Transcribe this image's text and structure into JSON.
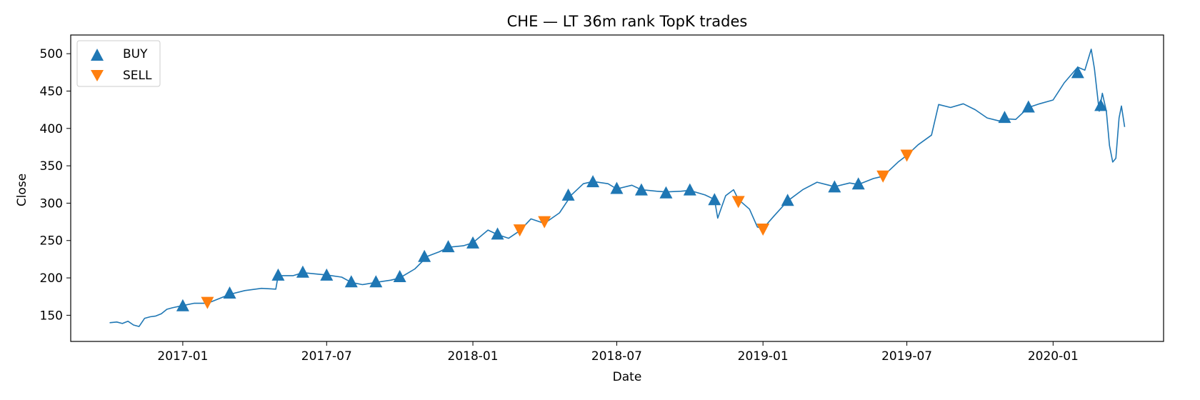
{
  "chart_data": {
    "type": "line",
    "title": "CHE — LT 36m rank TopK trades",
    "xlabel": "Date",
    "ylabel": "Close",
    "x_range": [
      "2016-08-13",
      "2020-05-19"
    ],
    "ylim": [
      115,
      525
    ],
    "x_ticks": [
      "2017-01",
      "2017-07",
      "2018-01",
      "2018-07",
      "2019-01",
      "2019-07",
      "2020-01"
    ],
    "y_ticks": [
      150,
      200,
      250,
      300,
      350,
      400,
      450,
      500
    ],
    "grid": false,
    "legend_position": "top-left",
    "colors": {
      "line": "#1f77b4",
      "buy": "#1f77b4",
      "sell": "#ff7f0e"
    },
    "series": [
      {
        "type": "line",
        "points": [
          [
            "2016-10-01",
            140
          ],
          [
            "2016-10-10",
            141
          ],
          [
            "2016-10-17",
            139
          ],
          [
            "2016-10-24",
            142
          ],
          [
            "2016-10-31",
            137
          ],
          [
            "2016-11-07",
            135
          ],
          [
            "2016-11-14",
            146
          ],
          [
            "2016-11-21",
            148
          ],
          [
            "2016-11-28",
            149
          ],
          [
            "2016-12-05",
            152
          ],
          [
            "2016-12-12",
            158
          ],
          [
            "2016-12-19",
            160
          ],
          [
            "2017-01-01",
            163
          ],
          [
            "2017-01-15",
            166
          ],
          [
            "2017-02-01",
            166
          ],
          [
            "2017-02-15",
            172
          ],
          [
            "2017-03-01",
            178
          ],
          [
            "2017-03-20",
            183
          ],
          [
            "2017-04-10",
            186
          ],
          [
            "2017-04-28",
            185
          ],
          [
            "2017-05-01",
            203
          ],
          [
            "2017-05-20",
            203
          ],
          [
            "2017-06-01",
            207
          ],
          [
            "2017-06-20",
            205
          ],
          [
            "2017-07-01",
            204
          ],
          [
            "2017-07-20",
            201
          ],
          [
            "2017-08-01",
            194
          ],
          [
            "2017-08-15",
            191
          ],
          [
            "2017-09-01",
            194
          ],
          [
            "2017-09-20",
            197
          ],
          [
            "2017-10-01",
            200
          ],
          [
            "2017-10-20",
            212
          ],
          [
            "2017-11-05",
            229
          ],
          [
            "2017-11-20",
            235
          ],
          [
            "2017-12-01",
            241
          ],
          [
            "2017-12-20",
            243
          ],
          [
            "2018-01-01",
            247
          ],
          [
            "2018-01-20",
            264
          ],
          [
            "2018-02-01",
            258
          ],
          [
            "2018-02-15",
            253
          ],
          [
            "2018-03-01",
            263
          ],
          [
            "2018-03-15",
            279
          ],
          [
            "2018-04-01",
            273
          ],
          [
            "2018-04-20",
            287
          ],
          [
            "2018-05-05",
            311
          ],
          [
            "2018-05-20",
            326
          ],
          [
            "2018-06-01",
            329
          ],
          [
            "2018-06-20",
            326
          ],
          [
            "2018-07-01",
            319
          ],
          [
            "2018-07-20",
            324
          ],
          [
            "2018-08-01",
            318
          ],
          [
            "2018-08-20",
            316
          ],
          [
            "2018-09-01",
            315
          ],
          [
            "2018-09-20",
            316
          ],
          [
            "2018-10-01",
            317
          ],
          [
            "2018-10-20",
            311
          ],
          [
            "2018-11-01",
            305
          ],
          [
            "2018-11-05",
            280
          ],
          [
            "2018-11-15",
            310
          ],
          [
            "2018-11-25",
            318
          ],
          [
            "2018-12-01",
            305
          ],
          [
            "2018-12-15",
            292
          ],
          [
            "2018-12-25",
            268
          ],
          [
            "2019-01-01",
            266
          ],
          [
            "2019-01-15",
            283
          ],
          [
            "2019-02-01",
            303
          ],
          [
            "2019-02-20",
            318
          ],
          [
            "2019-03-10",
            328
          ],
          [
            "2019-03-25",
            324
          ],
          [
            "2019-04-01",
            322
          ],
          [
            "2019-04-20",
            327
          ],
          [
            "2019-05-01",
            325
          ],
          [
            "2019-05-20",
            333
          ],
          [
            "2019-06-01",
            336
          ],
          [
            "2019-06-20",
            355
          ],
          [
            "2019-07-01",
            364
          ],
          [
            "2019-07-15",
            378
          ],
          [
            "2019-08-01",
            391
          ],
          [
            "2019-08-10",
            432
          ],
          [
            "2019-08-25",
            428
          ],
          [
            "2019-09-10",
            433
          ],
          [
            "2019-09-25",
            425
          ],
          [
            "2019-10-10",
            414
          ],
          [
            "2019-10-25",
            410
          ],
          [
            "2019-11-01",
            413
          ],
          [
            "2019-11-15",
            412
          ],
          [
            "2019-12-01",
            428
          ],
          [
            "2019-12-15",
            433
          ],
          [
            "2020-01-01",
            438
          ],
          [
            "2020-01-15",
            461
          ],
          [
            "2020-02-01",
            482
          ],
          [
            "2020-02-10",
            478
          ],
          [
            "2020-02-18",
            506
          ],
          [
            "2020-02-22",
            480
          ],
          [
            "2020-02-28",
            423
          ],
          [
            "2020-03-03",
            447
          ],
          [
            "2020-03-08",
            423
          ],
          [
            "2020-03-12",
            377
          ],
          [
            "2020-03-16",
            355
          ],
          [
            "2020-03-20",
            360
          ],
          [
            "2020-03-24",
            414
          ],
          [
            "2020-03-27",
            430
          ],
          [
            "2020-03-31",
            402
          ]
        ]
      }
    ],
    "buy_markers": [
      [
        "2017-01-01",
        163
      ],
      [
        "2017-03-01",
        180
      ],
      [
        "2017-05-01",
        204
      ],
      [
        "2017-06-01",
        208
      ],
      [
        "2017-07-01",
        204
      ],
      [
        "2017-08-01",
        195
      ],
      [
        "2017-09-01",
        195
      ],
      [
        "2017-10-01",
        202
      ],
      [
        "2017-11-01",
        229
      ],
      [
        "2017-12-01",
        242
      ],
      [
        "2018-01-01",
        247
      ],
      [
        "2018-02-01",
        259
      ],
      [
        "2018-05-01",
        311
      ],
      [
        "2018-06-01",
        329
      ],
      [
        "2018-07-01",
        320
      ],
      [
        "2018-08-01",
        318
      ],
      [
        "2018-09-01",
        314
      ],
      [
        "2018-10-01",
        318
      ],
      [
        "2018-11-01",
        305
      ],
      [
        "2019-02-01",
        304
      ],
      [
        "2019-04-01",
        322
      ],
      [
        "2019-05-01",
        326
      ],
      [
        "2019-11-01",
        415
      ],
      [
        "2019-12-01",
        429
      ],
      [
        "2020-02-01",
        475
      ],
      [
        "2020-03-01",
        431
      ]
    ],
    "sell_markers": [
      [
        "2017-02-01",
        167
      ],
      [
        "2018-03-01",
        264
      ],
      [
        "2018-04-01",
        275
      ],
      [
        "2018-12-01",
        302
      ],
      [
        "2019-01-01",
        265
      ],
      [
        "2019-06-01",
        336
      ],
      [
        "2019-07-01",
        364
      ]
    ],
    "legend": [
      {
        "label": "BUY",
        "marker": "triangle-up"
      },
      {
        "label": "SELL",
        "marker": "triangle-down"
      }
    ]
  }
}
